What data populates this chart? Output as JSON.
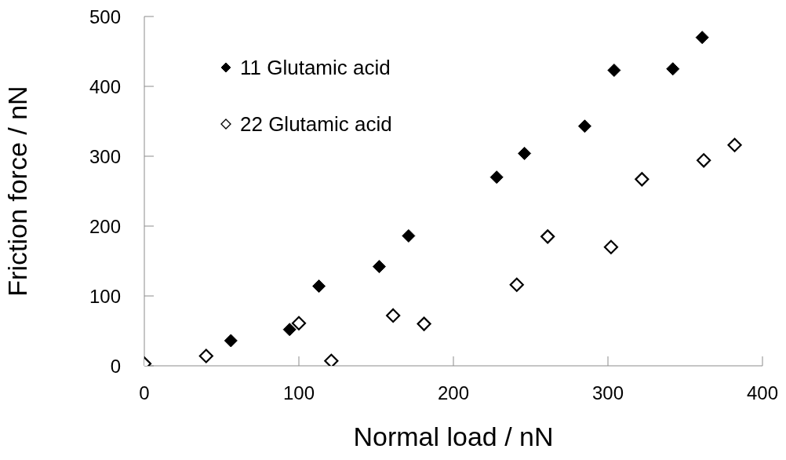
{
  "chart_data": {
    "type": "scatter",
    "xlabel": "Normal load / nN",
    "ylabel": "Friction force / nN",
    "xlim": [
      0,
      400
    ],
    "xticks": [
      0,
      100,
      200,
      300,
      400
    ],
    "ylim": [
      0,
      500
    ],
    "yticks": [
      0,
      100,
      200,
      300,
      400,
      500
    ],
    "grid": false,
    "legend": "top left",
    "marker": "diamond",
    "series": [
      {
        "name": "11 Glutamic acid",
        "color": "#000000",
        "x": [
          56,
          94,
          113,
          152,
          171,
          228,
          246,
          285,
          304,
          342,
          361
        ],
        "values": [
          36,
          52,
          114,
          142,
          186,
          270,
          304,
          343,
          423,
          425,
          470
        ]
      },
      {
        "name": "22 Glutamic acid",
        "color": "#000000",
        "x": [
          0,
          40,
          100,
          121,
          161,
          181,
          241,
          261,
          302,
          322,
          362,
          382
        ],
        "values": [
          3,
          14,
          61,
          7,
          72,
          60,
          116,
          185,
          170,
          267,
          294,
          316
        ]
      }
    ]
  }
}
